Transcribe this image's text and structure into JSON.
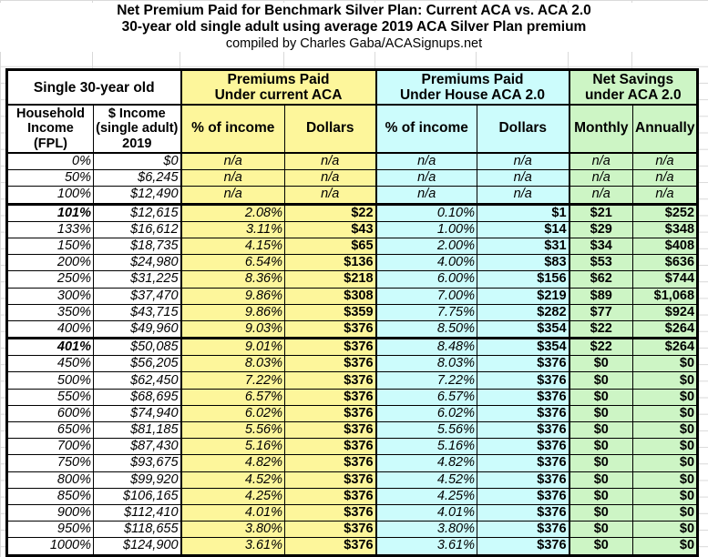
{
  "title": {
    "line1": "Net Premium Paid for Benchmark Silver Plan: Current ACA vs. ACA 2.0",
    "line2": "30-year old single adult using average 2019 ACA Silver Plan premium",
    "line3": "compiled by Charles Gaba/ACASignups.net"
  },
  "colors": {
    "current_aca": "#fdf69b",
    "house_aca": "#ccfcfc",
    "savings": "#cdf5c5"
  },
  "header": {
    "group0": "Single 30-year old",
    "group1": [
      "Premiums Paid",
      "Under current ACA"
    ],
    "group2": [
      "Premiums Paid",
      "Under House ACA 2.0"
    ],
    "group3": [
      "Net Savings",
      "under ACA 2.0"
    ],
    "cols": [
      [
        "Household",
        "Income",
        "(FPL)"
      ],
      [
        "$ Income",
        "(single adult)",
        "2019"
      ],
      "% of income",
      "Dollars",
      "% of income",
      "Dollars",
      "Monthly",
      "Annually"
    ]
  },
  "rows": [
    [
      "0%",
      "$0",
      "n/a",
      "n/a",
      "n/a",
      "n/a",
      "n/a",
      "n/a"
    ],
    [
      "50%",
      "$6,245",
      "n/a",
      "n/a",
      "n/a",
      "n/a",
      "n/a",
      "n/a"
    ],
    [
      "100%",
      "$12,490",
      "n/a",
      "n/a",
      "n/a",
      "n/a",
      "n/a",
      "n/a"
    ],
    [
      "101%",
      "$12,615",
      "2.08%",
      "$22",
      "0.10%",
      "$1",
      "$21",
      "$252"
    ],
    [
      "133%",
      "$16,612",
      "3.11%",
      "$43",
      "1.00%",
      "$14",
      "$29",
      "$348"
    ],
    [
      "150%",
      "$18,735",
      "4.15%",
      "$65",
      "2.00%",
      "$31",
      "$34",
      "$408"
    ],
    [
      "200%",
      "$24,980",
      "6.54%",
      "$136",
      "4.00%",
      "$83",
      "$53",
      "$636"
    ],
    [
      "250%",
      "$31,225",
      "8.36%",
      "$218",
      "6.00%",
      "$156",
      "$62",
      "$744"
    ],
    [
      "300%",
      "$37,470",
      "9.86%",
      "$308",
      "7.00%",
      "$219",
      "$89",
      "$1,068"
    ],
    [
      "350%",
      "$43,715",
      "9.86%",
      "$359",
      "7.75%",
      "$282",
      "$77",
      "$924"
    ],
    [
      "400%",
      "$49,960",
      "9.03%",
      "$376",
      "8.50%",
      "$354",
      "$22",
      "$264"
    ],
    [
      "401%",
      "$50,085",
      "9.01%",
      "$376",
      "8.48%",
      "$354",
      "$22",
      "$264"
    ],
    [
      "450%",
      "$56,205",
      "8.03%",
      "$376",
      "8.03%",
      "$376",
      "$0",
      "$0"
    ],
    [
      "500%",
      "$62,450",
      "7.22%",
      "$376",
      "7.22%",
      "$376",
      "$0",
      "$0"
    ],
    [
      "550%",
      "$68,695",
      "6.57%",
      "$376",
      "6.57%",
      "$376",
      "$0",
      "$0"
    ],
    [
      "600%",
      "$74,940",
      "6.02%",
      "$376",
      "6.02%",
      "$376",
      "$0",
      "$0"
    ],
    [
      "650%",
      "$81,185",
      "5.56%",
      "$376",
      "5.56%",
      "$376",
      "$0",
      "$0"
    ],
    [
      "700%",
      "$87,430",
      "5.16%",
      "$376",
      "5.16%",
      "$376",
      "$0",
      "$0"
    ],
    [
      "750%",
      "$93,675",
      "4.82%",
      "$376",
      "4.82%",
      "$376",
      "$0",
      "$0"
    ],
    [
      "800%",
      "$99,920",
      "4.52%",
      "$376",
      "4.52%",
      "$376",
      "$0",
      "$0"
    ],
    [
      "850%",
      "$106,165",
      "4.25%",
      "$376",
      "4.25%",
      "$376",
      "$0",
      "$0"
    ],
    [
      "900%",
      "$112,410",
      "4.01%",
      "$376",
      "4.01%",
      "$376",
      "$0",
      "$0"
    ],
    [
      "950%",
      "$118,655",
      "3.80%",
      "$376",
      "3.80%",
      "$376",
      "$0",
      "$0"
    ],
    [
      "1000%",
      "$124,900",
      "3.61%",
      "$376",
      "3.61%",
      "$376",
      "$0",
      "$0"
    ]
  ]
}
